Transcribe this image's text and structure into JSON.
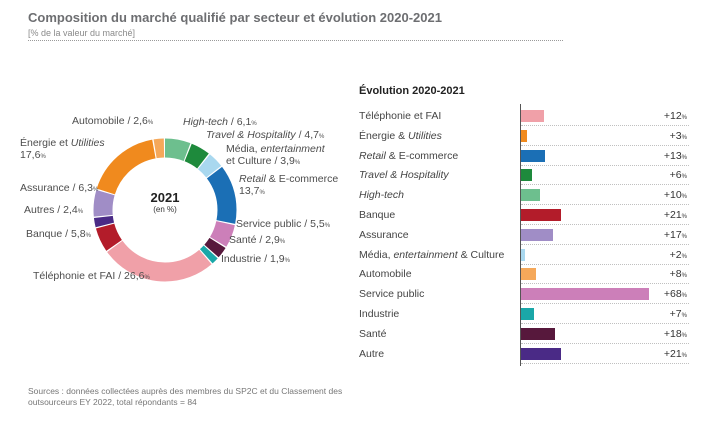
{
  "title": "Composition du marché qualifié par secteur et évolution 2020-2021",
  "subtitle": "[% de la valeur du marché]",
  "chart_data": [
    {
      "type": "pie",
      "variant": "donut",
      "center_label": "2021",
      "center_unit": "(en %)",
      "start": "top",
      "direction": "clockwise",
      "slices": [
        {
          "name": "High-tech",
          "value": 6.1,
          "color": "#6dbf8e",
          "label": [
            {
              "t": "High-tech",
              "i": true
            },
            {
              "t": " / 6,1"
            },
            {
              "t": "%",
              "p": true
            }
          ]
        },
        {
          "name": "Travel & Hospitality",
          "value": 4.7,
          "color": "#1e8a3c",
          "label": [
            {
              "t": "Travel & Hospitality",
              "i": true
            },
            {
              "t": " / 4,7"
            },
            {
              "t": "%",
              "p": true
            }
          ]
        },
        {
          "name": "Média, entertainment et Culture",
          "value": 3.9,
          "color": "#a9d8ef",
          "label": [
            {
              "t": "Média, "
            },
            {
              "t": "entertainment",
              "i": true
            },
            {
              "br": true
            },
            {
              "t": "et Culture / 3,9"
            },
            {
              "t": "%",
              "p": true
            }
          ]
        },
        {
          "name": "Retail & E-commerce",
          "value": 13.7,
          "color": "#1b6fb5",
          "label": [
            {
              "t": "Retail",
              "i": true
            },
            {
              "t": " & E-commerce"
            },
            {
              "br": true
            },
            {
              "t": "13,7"
            },
            {
              "t": "%",
              "p": true
            }
          ]
        },
        {
          "name": "Service public",
          "value": 5.5,
          "color": "#cc7fb9",
          "label": [
            {
              "t": "Service public / 5,5"
            },
            {
              "t": "%",
              "p": true
            }
          ]
        },
        {
          "name": "Santé",
          "value": 2.9,
          "color": "#57183c",
          "label": [
            {
              "t": "Santé / 2,9"
            },
            {
              "t": "%",
              "p": true
            }
          ]
        },
        {
          "name": "Industrie",
          "value": 1.9,
          "color": "#1aa7a8",
          "label": [
            {
              "t": "Industrie / 1,9"
            },
            {
              "t": "%",
              "p": true
            }
          ]
        },
        {
          "name": "Téléphonie et FAI",
          "value": 26.6,
          "color": "#f0a0a8",
          "label": [
            {
              "t": "Téléphonie et FAI / 26,6"
            },
            {
              "t": "%",
              "p": true
            }
          ]
        },
        {
          "name": "Banque",
          "value": 5.8,
          "color": "#b31c2a",
          "label": [
            {
              "t": "Banque / 5,8"
            },
            {
              "t": "%",
              "p": true
            }
          ]
        },
        {
          "name": "Autres",
          "value": 2.4,
          "color": "#4a2a86",
          "label": [
            {
              "t": "Autres / 2,4"
            },
            {
              "t": "%",
              "p": true
            }
          ]
        },
        {
          "name": "Assurance",
          "value": 6.3,
          "color": "#a08dc6",
          "label": [
            {
              "t": "Assurance / 6,3"
            },
            {
              "t": "%",
              "p": true
            }
          ]
        },
        {
          "name": "Énergie et Utilities",
          "value": 17.6,
          "color": "#f08a1e",
          "label": [
            {
              "t": "Énergie et "
            },
            {
              "t": "Utilities",
              "i": true
            },
            {
              "br": true
            },
            {
              "t": "17,6"
            },
            {
              "t": "%",
              "p": true
            }
          ]
        },
        {
          "name": "Automobile",
          "value": 2.6,
          "color": "#f5a85a",
          "label": [
            {
              "t": "Automobile / 2,6"
            },
            {
              "t": "%",
              "p": true
            }
          ]
        }
      ]
    },
    {
      "type": "bar",
      "orientation": "horizontal",
      "title": "Évolution 2020-2021",
      "unit": "%",
      "categories": [
        "Téléphonie et FAI",
        "Énergie & Utilities",
        "Retail & E-commerce",
        "Travel & Hospitality",
        "High-tech",
        "Banque",
        "Assurance",
        "Média, entertainment & Culture",
        "Automobile",
        "Service public",
        "Industrie",
        "Santé",
        "Autre"
      ],
      "values": [
        12,
        3,
        13,
        6,
        10,
        21,
        17,
        2,
        8,
        68,
        7,
        18,
        21
      ],
      "value_labels": [
        "+12",
        "+3",
        "+13",
        "+6",
        "+10",
        "+21",
        "+17",
        "+2",
        "+8",
        "+68",
        "+7",
        "+18",
        "+21"
      ],
      "colors": [
        "#f0a0a8",
        "#f08a1e",
        "#1b6fb5",
        "#1e8a3c",
        "#6dbf8e",
        "#b31c2a",
        "#a08dc6",
        "#a9d8ef",
        "#f5a85a",
        "#cc7fb9",
        "#1aa7a8",
        "#57183c",
        "#4a2a86"
      ],
      "category_parts": [
        [
          {
            "t": "Téléphonie et FAI"
          }
        ],
        [
          {
            "t": "Énergie & "
          },
          {
            "t": "Utilities",
            "i": true
          }
        ],
        [
          {
            "t": "Retail",
            "i": true
          },
          {
            "t": " & E-commerce"
          }
        ],
        [
          {
            "t": "Travel & Hospitality",
            "i": true
          }
        ],
        [
          {
            "t": "High-tech",
            "i": true
          }
        ],
        [
          {
            "t": "Banque"
          }
        ],
        [
          {
            "t": "Assurance"
          }
        ],
        [
          {
            "t": "Média, "
          },
          {
            "t": "entertainment",
            "i": true
          },
          {
            "t": " & Culture"
          }
        ],
        [
          {
            "t": "Automobile"
          }
        ],
        [
          {
            "t": "Service public"
          }
        ],
        [
          {
            "t": "Industrie"
          }
        ],
        [
          {
            "t": "Santé"
          }
        ],
        [
          {
            "t": "Autre"
          }
        ]
      ]
    }
  ],
  "source": "Sources : données collectées auprès des membres du SP2C et du Classement des outsourceurs EY 2022, total répondants = 84"
}
